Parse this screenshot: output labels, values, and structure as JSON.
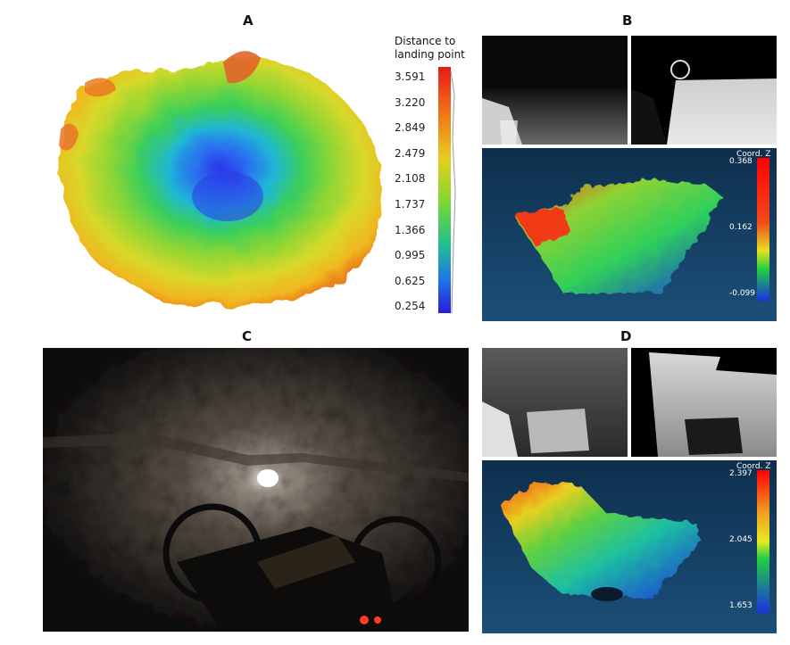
{
  "panels": {
    "a": {
      "letter": "A",
      "colorbar_title_line1": "Distance to",
      "colorbar_title_line2": "landing point",
      "ticks": [
        "3.591",
        "3.220",
        "2.849",
        "2.479",
        "2.108",
        "1.737",
        "1.366",
        "0.995",
        "0.625",
        "0.254"
      ]
    },
    "b": {
      "letter": "B",
      "colorbar_title": "Coord. Z",
      "ticks": [
        "0.368",
        "0.162",
        "-0.099"
      ]
    },
    "c": {
      "letter": "C"
    },
    "d": {
      "letter": "D",
      "colorbar_title": "Coord. Z",
      "ticks": [
        "2.397",
        "2.045",
        "1.653"
      ]
    }
  }
}
